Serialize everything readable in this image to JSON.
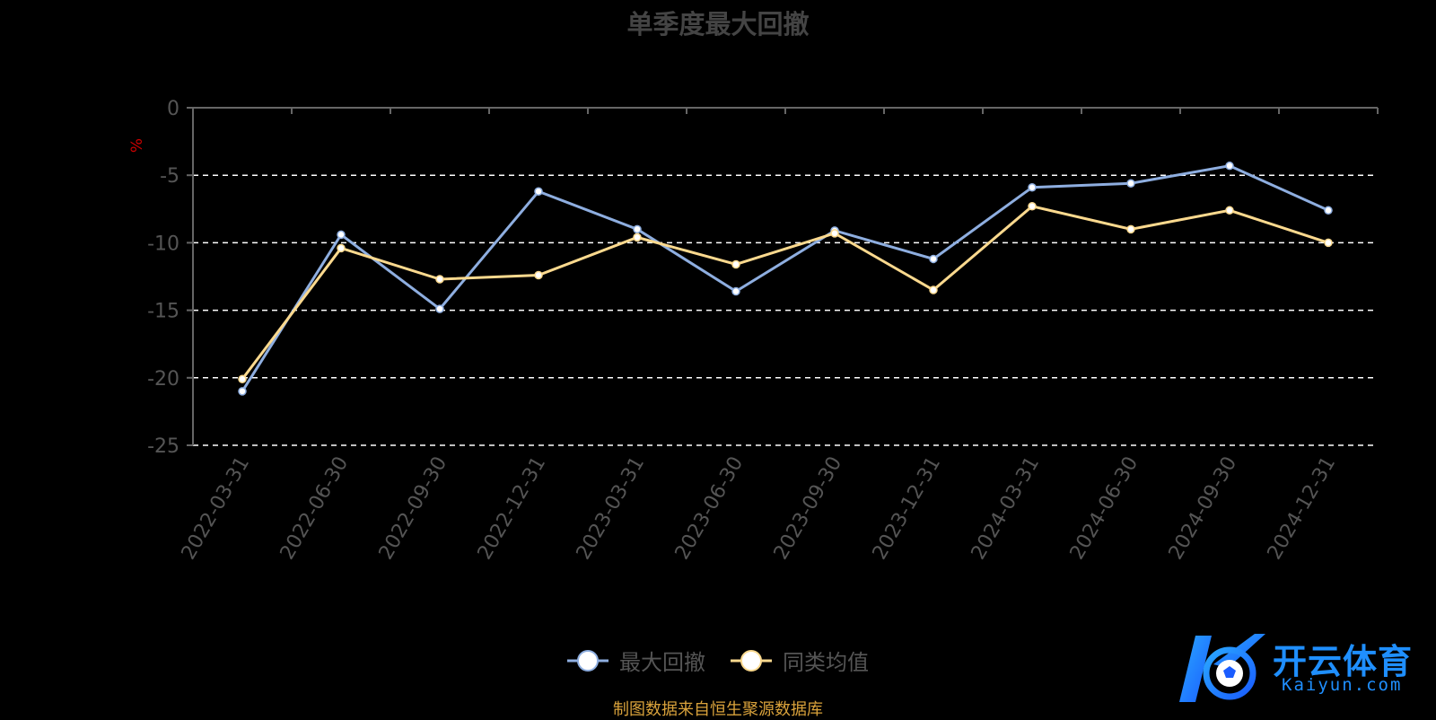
{
  "title": "单季度最大回撤",
  "source_note": "制图数据来自恒生聚源数据库",
  "logo": {
    "cn": "开云体育",
    "en": "Kaiyun.com",
    "icon": "k-soccer-ball-icon"
  },
  "colors": {
    "series1": "#8eaee0",
    "series2": "#fbd98e",
    "grid": "#ffffff",
    "axis": "#666666",
    "ylabel": "#cc0000"
  },
  "chart_data": {
    "type": "line",
    "title": "单季度最大回撤",
    "xlabel": "",
    "ylabel": "%",
    "ylim": [
      -25,
      0
    ],
    "yticks": [
      0,
      -5,
      -10,
      -15,
      -20,
      -25
    ],
    "grid": true,
    "legend_position": "bottom-center",
    "categories": [
      "2022-03-31",
      "2022-06-30",
      "2022-09-30",
      "2022-12-31",
      "2023-03-31",
      "2023-06-30",
      "2023-09-30",
      "2023-12-31",
      "2024-03-31",
      "2024-06-30",
      "2024-09-30",
      "2024-12-31"
    ],
    "series": [
      {
        "name": "最大回撤",
        "values": [
          -21.0,
          -9.4,
          -14.9,
          -6.2,
          -9.0,
          -13.6,
          -9.1,
          -11.2,
          -5.9,
          -5.6,
          -4.3,
          -7.6
        ]
      },
      {
        "name": "同类均值",
        "values": [
          -20.1,
          -10.4,
          -12.7,
          -12.4,
          -9.6,
          -11.6,
          -9.3,
          -13.5,
          -7.3,
          -9.0,
          -7.6,
          -10.0
        ]
      }
    ]
  }
}
